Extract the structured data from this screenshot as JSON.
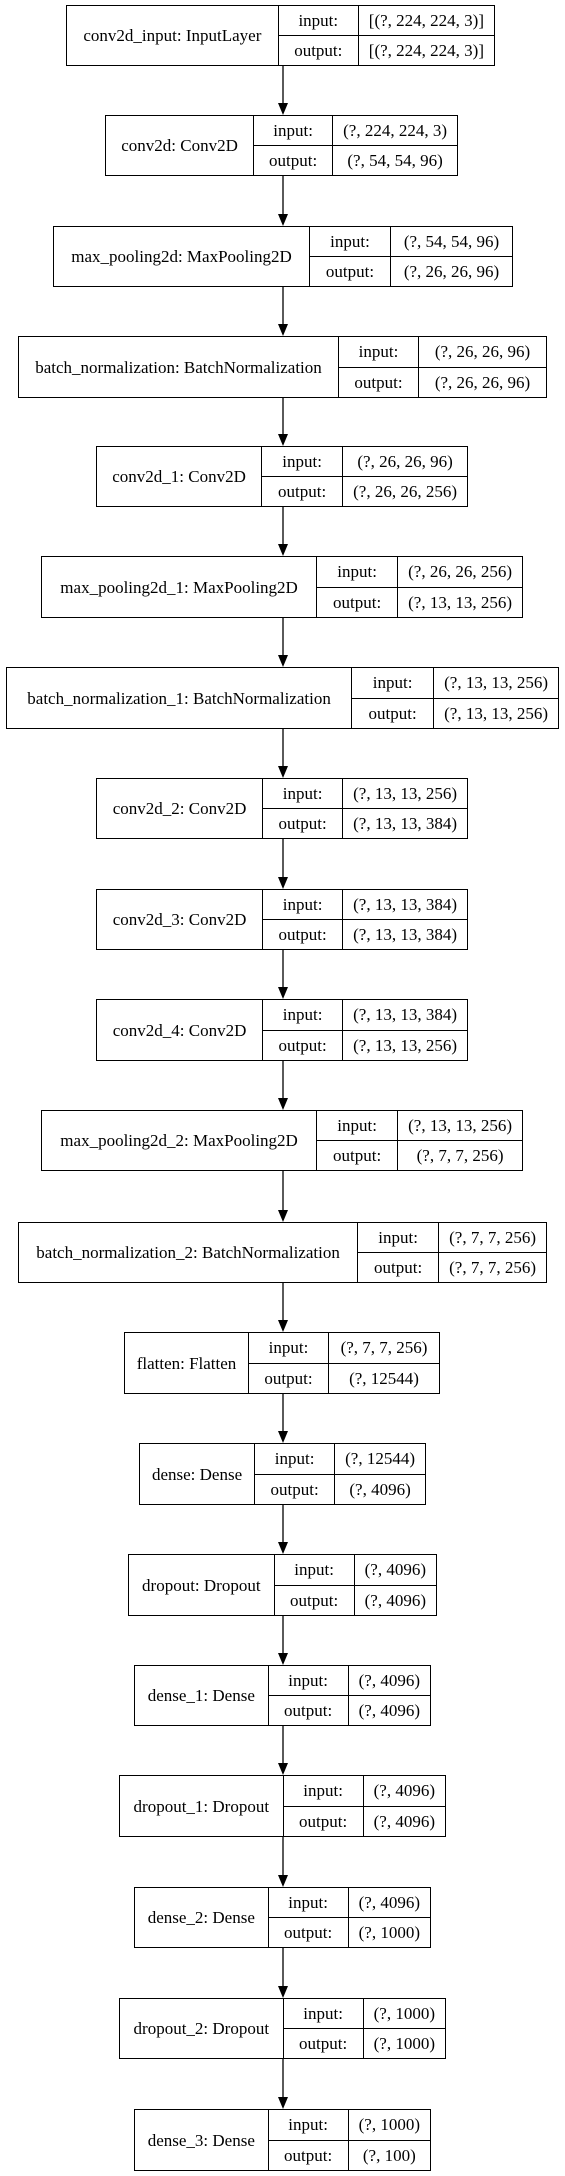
{
  "layers": [
    {
      "name": "conv2d_input: InputLayer",
      "input_label": "input:",
      "input_shape": "[(?, 224, 224, 3)]",
      "output_label": "output:",
      "output_shape": "[(?, 224, 224, 3)]"
    },
    {
      "name": "conv2d: Conv2D",
      "input_label": "input:",
      "input_shape": "(?, 224, 224, 3)",
      "output_label": "output:",
      "output_shape": "(?, 54, 54, 96)"
    },
    {
      "name": "max_pooling2d: MaxPooling2D",
      "input_label": "input:",
      "input_shape": "(?, 54, 54, 96)",
      "output_label": "output:",
      "output_shape": "(?, 26, 26, 96)"
    },
    {
      "name": "batch_normalization: BatchNormalization",
      "input_label": "input:",
      "input_shape": "(?, 26, 26, 96)",
      "output_label": "output:",
      "output_shape": "(?, 26, 26, 96)"
    },
    {
      "name": "conv2d_1: Conv2D",
      "input_label": "input:",
      "input_shape": "(?, 26, 26, 96)",
      "output_label": "output:",
      "output_shape": "(?, 26, 26, 256)"
    },
    {
      "name": "max_pooling2d_1: MaxPooling2D",
      "input_label": "input:",
      "input_shape": "(?, 26, 26, 256)",
      "output_label": "output:",
      "output_shape": "(?, 13, 13, 256)"
    },
    {
      "name": "batch_normalization_1: BatchNormalization",
      "input_label": "input:",
      "input_shape": "(?, 13, 13, 256)",
      "output_label": "output:",
      "output_shape": "(?, 13, 13, 256)"
    },
    {
      "name": "conv2d_2: Conv2D",
      "input_label": "input:",
      "input_shape": "(?, 13, 13, 256)",
      "output_label": "output:",
      "output_shape": "(?, 13, 13, 384)"
    },
    {
      "name": "conv2d_3: Conv2D",
      "input_label": "input:",
      "input_shape": "(?, 13, 13, 384)",
      "output_label": "output:",
      "output_shape": "(?, 13, 13, 384)"
    },
    {
      "name": "conv2d_4: Conv2D",
      "input_label": "input:",
      "input_shape": "(?, 13, 13, 384)",
      "output_label": "output:",
      "output_shape": "(?, 13, 13, 256)"
    },
    {
      "name": "max_pooling2d_2: MaxPooling2D",
      "input_label": "input:",
      "input_shape": "(?, 13, 13, 256)",
      "output_label": "output:",
      "output_shape": "(?, 7, 7, 256)"
    },
    {
      "name": "batch_normalization_2: BatchNormalization",
      "input_label": "input:",
      "input_shape": "(?, 7, 7, 256)",
      "output_label": "output:",
      "output_shape": "(?, 7, 7, 256)"
    },
    {
      "name": "flatten: Flatten",
      "input_label": "input:",
      "input_shape": "(?, 7, 7, 256)",
      "output_label": "output:",
      "output_shape": "(?, 12544)"
    },
    {
      "name": "dense: Dense",
      "input_label": "input:",
      "input_shape": "(?, 12544)",
      "output_label": "output:",
      "output_shape": "(?, 4096)"
    },
    {
      "name": "dropout: Dropout",
      "input_label": "input:",
      "input_shape": "(?, 4096)",
      "output_label": "output:",
      "output_shape": "(?, 4096)"
    },
    {
      "name": "dense_1: Dense",
      "input_label": "input:",
      "input_shape": "(?, 4096)",
      "output_label": "output:",
      "output_shape": "(?, 4096)"
    },
    {
      "name": "dropout_1: Dropout",
      "input_label": "input:",
      "input_shape": "(?, 4096)",
      "output_label": "output:",
      "output_shape": "(?, 4096)"
    },
    {
      "name": "dense_2: Dense",
      "input_label": "input:",
      "input_shape": "(?, 4096)",
      "output_label": "output:",
      "output_shape": "(?, 1000)"
    },
    {
      "name": "dropout_2: Dropout",
      "input_label": "input:",
      "input_shape": "(?, 1000)",
      "output_label": "output:",
      "output_shape": "(?, 1000)"
    },
    {
      "name": "dense_3: Dense",
      "input_label": "input:",
      "input_shape": "(?, 1000)",
      "output_label": "output:",
      "output_shape": "(?, 100)"
    }
  ]
}
